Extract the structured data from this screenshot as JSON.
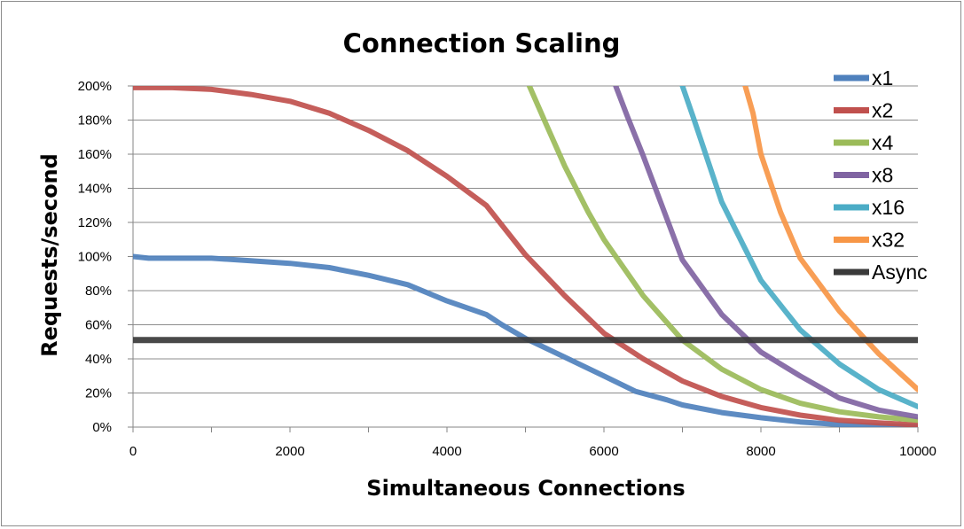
{
  "chart_data": {
    "type": "line",
    "title": "Connection Scaling",
    "xlabel": "Simultaneous Connections",
    "ylabel": "Requests/second",
    "xlim": [
      0,
      10000
    ],
    "ylim": [
      0,
      200
    ],
    "x_ticks": [
      0,
      2000,
      4000,
      6000,
      8000,
      10000
    ],
    "x_tick_labels": [
      "0",
      "2000",
      "4000",
      "6000",
      "8000",
      "10000"
    ],
    "y_ticks": [
      0,
      20,
      40,
      60,
      80,
      100,
      120,
      140,
      160,
      180,
      200
    ],
    "y_tick_labels": [
      "0%",
      "20%",
      "40%",
      "60%",
      "80%",
      "100%",
      "120%",
      "140%",
      "160%",
      "180%",
      "200%"
    ],
    "grid": "horizontal",
    "legend": "right",
    "series": [
      {
        "name": "x1",
        "color": "#4f81bd",
        "points": [
          [
            0,
            100
          ],
          [
            200,
            99
          ],
          [
            500,
            99
          ],
          [
            1000,
            99
          ],
          [
            1500,
            97.5
          ],
          [
            2000,
            96
          ],
          [
            2500,
            93.5
          ],
          [
            3000,
            89
          ],
          [
            3500,
            83.5
          ],
          [
            4000,
            74
          ],
          [
            4500,
            66
          ],
          [
            4700,
            60
          ],
          [
            5000,
            52
          ],
          [
            5500,
            41
          ],
          [
            6000,
            30
          ],
          [
            6400,
            21
          ],
          [
            6800,
            16
          ],
          [
            7000,
            13
          ],
          [
            7500,
            8.5
          ],
          [
            8000,
            5.5
          ],
          [
            8500,
            3
          ],
          [
            9000,
            1.5
          ],
          [
            9500,
            0.8
          ],
          [
            10000,
            0.3
          ]
        ]
      },
      {
        "name": "x2",
        "color": "#c0504d",
        "points": [
          [
            0,
            199
          ],
          [
            500,
            199
          ],
          [
            1000,
            198
          ],
          [
            1500,
            195
          ],
          [
            2000,
            191
          ],
          [
            2500,
            184
          ],
          [
            3000,
            174
          ],
          [
            3500,
            162
          ],
          [
            4000,
            147
          ],
          [
            4500,
            130
          ],
          [
            5000,
            101
          ],
          [
            5500,
            77
          ],
          [
            6000,
            55
          ],
          [
            6500,
            40
          ],
          [
            7000,
            27
          ],
          [
            7500,
            18
          ],
          [
            8000,
            11.5
          ],
          [
            8500,
            7
          ],
          [
            9000,
            4
          ],
          [
            9500,
            2.5
          ],
          [
            10000,
            1.2
          ]
        ]
      },
      {
        "name": "x4",
        "color": "#9bbb59",
        "points": [
          [
            5050,
            200
          ],
          [
            5250,
            179
          ],
          [
            5500,
            153
          ],
          [
            5800,
            126
          ],
          [
            6000,
            110
          ],
          [
            6500,
            77
          ],
          [
            7000,
            51
          ],
          [
            7500,
            34
          ],
          [
            8000,
            22
          ],
          [
            8500,
            14
          ],
          [
            9000,
            9
          ],
          [
            9500,
            6
          ],
          [
            10000,
            4
          ]
        ]
      },
      {
        "name": "x8",
        "color": "#8064a2",
        "points": [
          [
            6150,
            200
          ],
          [
            6300,
            182
          ],
          [
            6500,
            159
          ],
          [
            7000,
            98
          ],
          [
            7500,
            66
          ],
          [
            8000,
            44
          ],
          [
            8500,
            30
          ],
          [
            9000,
            17
          ],
          [
            9500,
            10
          ],
          [
            10000,
            6
          ]
        ]
      },
      {
        "name": "x16",
        "color": "#4bacc6",
        "points": [
          [
            7000,
            200
          ],
          [
            7150,
            180
          ],
          [
            7500,
            132
          ],
          [
            8000,
            86
          ],
          [
            8500,
            57
          ],
          [
            9000,
            37
          ],
          [
            9500,
            22
          ],
          [
            10000,
            12
          ]
        ]
      },
      {
        "name": "x32",
        "color": "#f79646",
        "points": [
          [
            7800,
            200
          ],
          [
            7900,
            184
          ],
          [
            8000,
            160
          ],
          [
            8250,
            126
          ],
          [
            8500,
            99
          ],
          [
            9000,
            68
          ],
          [
            9500,
            43
          ],
          [
            10000,
            22
          ]
        ]
      },
      {
        "name": "Async",
        "color": "#3a3a3a",
        "points": [
          [
            0,
            51
          ],
          [
            10000,
            51
          ]
        ]
      }
    ]
  }
}
